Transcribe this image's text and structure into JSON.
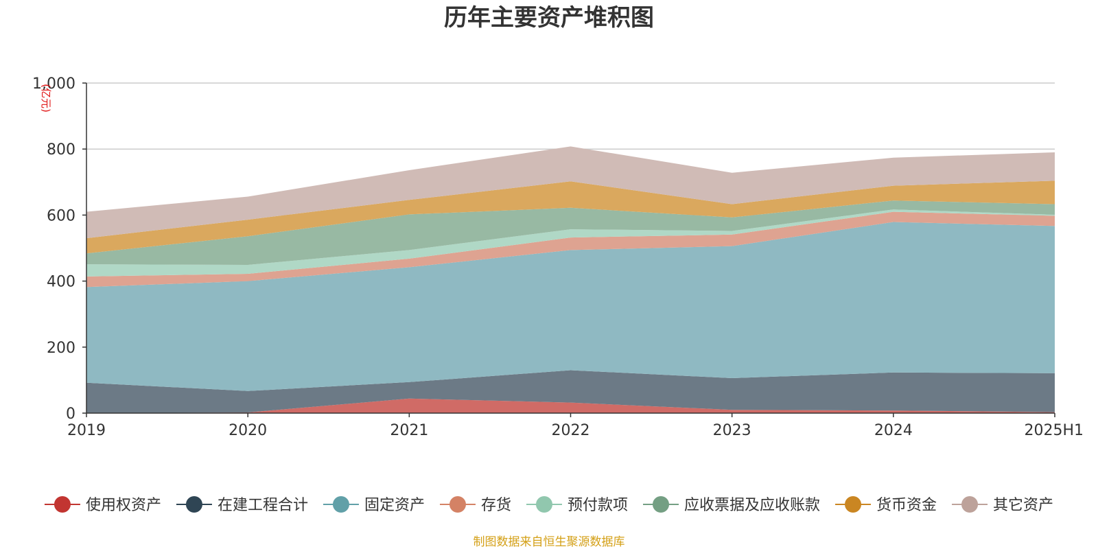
{
  "chart_data": {
    "type": "area",
    "stacked": true,
    "title": "历年主要资产堆积图",
    "unit_label": "(亿元)",
    "categories": [
      "2019",
      "2020",
      "2021",
      "2022",
      "2023",
      "2024",
      "2025H1"
    ],
    "ylim": [
      0,
      1000
    ],
    "y_ticks": [
      0,
      200,
      400,
      600,
      800,
      1000
    ],
    "y_tick_labels": [
      "0",
      "200",
      "400",
      "600",
      "800",
      "1,000"
    ],
    "grid": true,
    "legend_position": "bottom",
    "series": [
      {
        "name": "使用权资产",
        "color": "#c23531",
        "fill": "#d06b66",
        "values": [
          0,
          2,
          44,
          32,
          10,
          8,
          3
        ]
      },
      {
        "name": "在建工程合计",
        "color": "#2f4554",
        "fill": "#6c7a86",
        "values": [
          92,
          65,
          50,
          98,
          96,
          115,
          118
        ]
      },
      {
        "name": "固定资产",
        "color": "#61a0a8",
        "fill": "#8fb9c2",
        "values": [
          290,
          333,
          348,
          364,
          400,
          456,
          446
        ]
      },
      {
        "name": "存货",
        "color": "#d48265",
        "fill": "#dea391",
        "values": [
          32,
          22,
          26,
          38,
          35,
          31,
          31
        ]
      },
      {
        "name": "预付款项",
        "color": "#91c7ae",
        "fill": "#b0d8c6",
        "values": [
          37,
          27,
          26,
          25,
          11,
          7,
          3
        ]
      },
      {
        "name": "应收票据及应收账款",
        "color": "#749f83",
        "fill": "#98b9a3",
        "values": [
          33,
          87,
          108,
          65,
          41,
          27,
          32
        ]
      },
      {
        "name": "货币资金",
        "color": "#ca8622",
        "fill": "#daa85e",
        "values": [
          46,
          50,
          44,
          80,
          40,
          45,
          71
        ]
      },
      {
        "name": "其它资产",
        "color": "#bda29a",
        "fill": "#d0bbb6",
        "values": [
          80,
          70,
          90,
          106,
          95,
          85,
          86
        ]
      }
    ]
  },
  "source_text": "制图数据来自恒生聚源数据库",
  "source_color": "#d4a017"
}
